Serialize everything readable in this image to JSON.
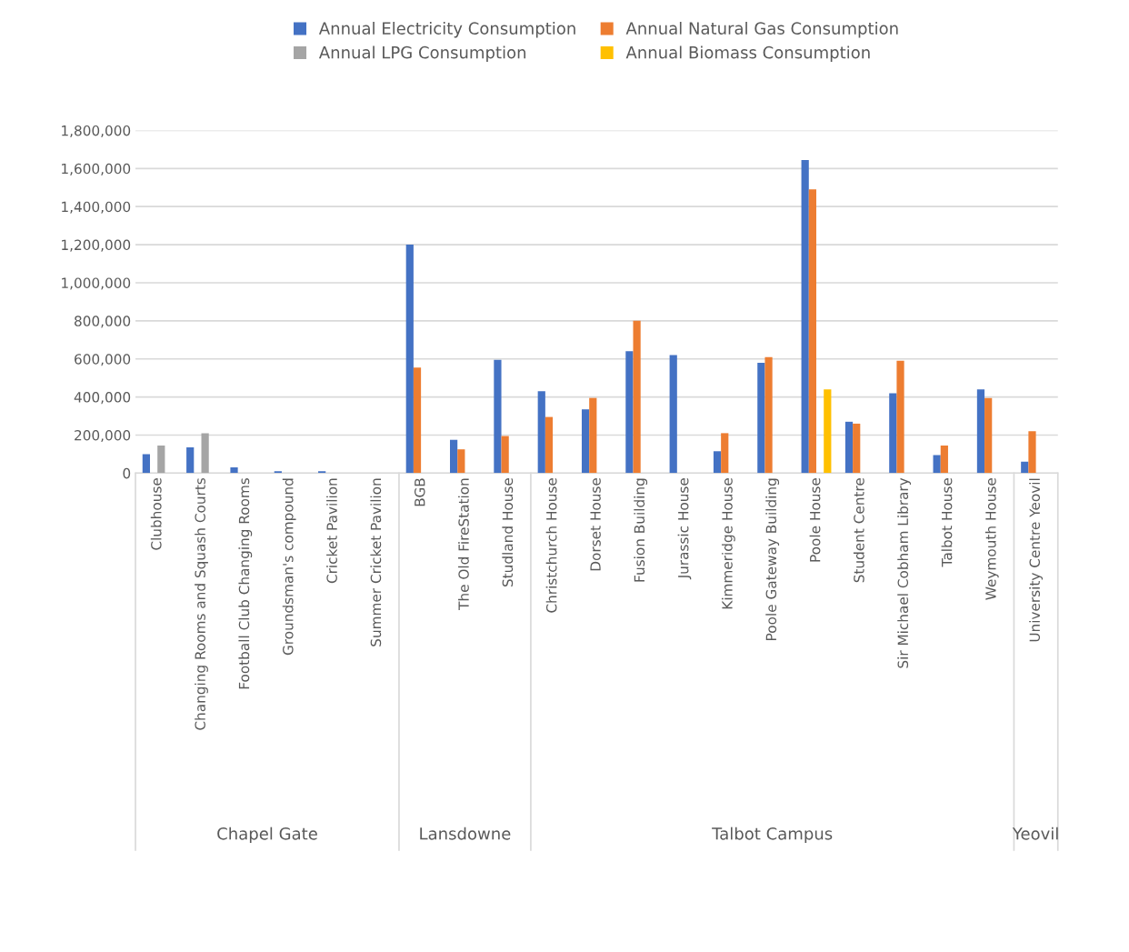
{
  "chart_data": {
    "type": "bar",
    "categories": [
      "Clubhouse",
      "Changing Rooms and Squash Courts",
      "Football Club Changing Rooms",
      "Groundsman's compound",
      "Cricket Pavilion",
      "Summer Cricket Pavilion",
      "BGB",
      "The Old FireStation",
      "Studland House",
      "Christchurch House",
      "Dorset House",
      "Fusion Building",
      "Jurassic House",
      "Kimmeridge House",
      "Poole Gateway Building",
      "Poole House",
      "Student Centre",
      "Sir Michael Cobham Library",
      "Talbot House",
      "Weymouth House",
      "University Centre Yeovil"
    ],
    "series": [
      {
        "name": "Annual Electricity Consumption",
        "color": "#4472c4",
        "values": [
          100000,
          135000,
          30000,
          10000,
          10000,
          null,
          1200000,
          175000,
          595000,
          430000,
          335000,
          640000,
          620000,
          115000,
          580000,
          1645000,
          270000,
          420000,
          95000,
          440000,
          60000
        ]
      },
      {
        "name": "Annual Natural Gas Consumption",
        "color": "#ed7d31",
        "values": [
          null,
          null,
          null,
          null,
          null,
          null,
          555000,
          125000,
          195000,
          295000,
          395000,
          800000,
          null,
          210000,
          610000,
          1490000,
          260000,
          590000,
          145000,
          395000,
          220000
        ]
      },
      {
        "name": "Annual LPG Consumption",
        "color": "#a5a5a5",
        "values": [
          145000,
          210000,
          null,
          null,
          null,
          null,
          null,
          null,
          null,
          null,
          null,
          null,
          null,
          null,
          null,
          null,
          null,
          null,
          null,
          null,
          null
        ]
      },
      {
        "name": "Annual Biomass Consumption",
        "color": "#ffc000",
        "values": [
          null,
          null,
          null,
          null,
          null,
          null,
          null,
          null,
          null,
          null,
          null,
          null,
          null,
          null,
          null,
          440000,
          null,
          null,
          null,
          null,
          null
        ]
      }
    ],
    "ylim": [
      0,
      1800000
    ],
    "yticks": [
      {
        "value": 0,
        "label": "0"
      },
      {
        "value": 200000,
        "label": "200,000"
      },
      {
        "value": 400000,
        "label": "400,000"
      },
      {
        "value": 600000,
        "label": "600,000"
      },
      {
        "value": 800000,
        "label": "800,000"
      },
      {
        "value": 1000000,
        "label": "1,000,000"
      },
      {
        "value": 1200000,
        "label": "1,200,000"
      },
      {
        "value": 1400000,
        "label": "1,400,000"
      },
      {
        "value": 1600000,
        "label": "1,600,000"
      },
      {
        "value": 1800000,
        "label": "1,800,000"
      }
    ],
    "grid": "y",
    "legend": "top",
    "annotations": [
      "Chapel Gate",
      "Lansdowne",
      "Talbot Campus",
      "Yeovil"
    ]
  }
}
